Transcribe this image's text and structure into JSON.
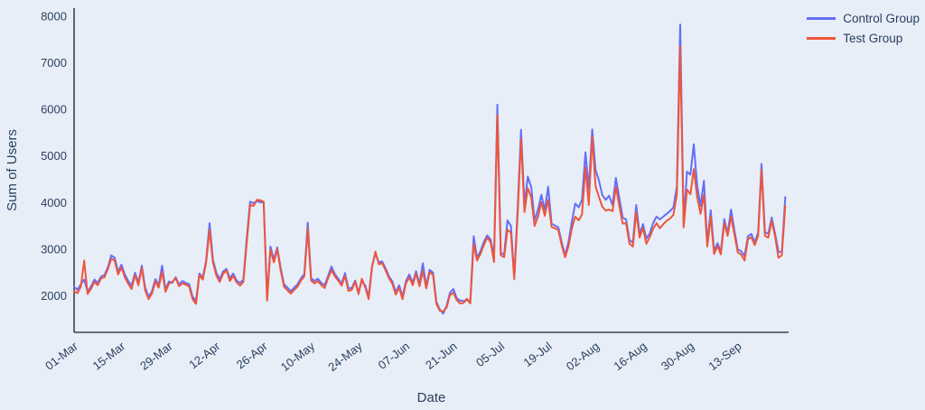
{
  "page": {
    "background": "#e8eef7"
  },
  "legend": {
    "items": [
      {
        "label": "Control Group"
      },
      {
        "label": "Test Group"
      }
    ]
  },
  "chart_data": {
    "type": "line",
    "title": "",
    "xlabel": "Date",
    "ylabel": "Sum of Users",
    "grid": false,
    "legend_position": "top-right-outside",
    "x_unit": "day index from 01-Mar, daily data",
    "xlim_days": [
      0,
      211
    ],
    "ylim": [
      1220,
      8170
    ],
    "y_ticks": [
      2000,
      3000,
      4000,
      5000,
      6000,
      7000,
      8000
    ],
    "x_tick_days": [
      0,
      14,
      28,
      42,
      56,
      70,
      84,
      98,
      112,
      126,
      140,
      154,
      168,
      182,
      196
    ],
    "x_tick_labels": [
      "01-Mar",
      "15-Mar",
      "29-Mar",
      "12-Apr",
      "26-Apr",
      "10-May",
      "24-May",
      "07-Jun",
      "21-Jun",
      "05-Jul",
      "19-Jul",
      "02-Aug",
      "16-Aug",
      "30-Aug",
      "13-Sep"
    ],
    "colors": {
      "control": "#636EFA",
      "test": "#EF553B",
      "text": "#2a3f5f",
      "axis_line": "#3b4149",
      "background": "#e8eef7"
    },
    "series": [
      {
        "name": "Control Group",
        "color_key": "control",
        "values": [
          2200,
          2130,
          2250,
          2350,
          2090,
          2200,
          2350,
          2280,
          2420,
          2450,
          2620,
          2870,
          2820,
          2520,
          2670,
          2460,
          2320,
          2220,
          2500,
          2280,
          2650,
          2180,
          1980,
          2100,
          2360,
          2230,
          2650,
          2140,
          2310,
          2280,
          2400,
          2250,
          2320,
          2280,
          2250,
          1980,
          1900,
          2480,
          2400,
          2760,
          3560,
          2780,
          2500,
          2360,
          2520,
          2580,
          2380,
          2480,
          2330,
          2280,
          2350,
          3250,
          4020,
          3990,
          4030,
          4010,
          4000,
          1960,
          3060,
          2780,
          3040,
          2600,
          2250,
          2180,
          2100,
          2180,
          2250,
          2380,
          2470,
          3570,
          2380,
          2320,
          2370,
          2280,
          2230,
          2430,
          2630,
          2470,
          2370,
          2270,
          2490,
          2160,
          2170,
          2330,
          2080,
          2330,
          2220,
          1980,
          2650,
          2900,
          2720,
          2740,
          2590,
          2420,
          2310,
          2080,
          2230,
          1980,
          2320,
          2460,
          2280,
          2530,
          2260,
          2700,
          2210,
          2560,
          2500,
          1870,
          1710,
          1620,
          1790,
          2070,
          2150,
          1950,
          1900,
          1890,
          1910,
          1880,
          3280,
          2820,
          2960,
          3160,
          3300,
          3210,
          2850,
          6100,
          2920,
          2890,
          3620,
          3500,
          2420,
          3900,
          5560,
          3950,
          4560,
          4330,
          3620,
          3850,
          4170,
          3840,
          4340,
          3550,
          3510,
          3470,
          3150,
          2870,
          3150,
          3600,
          3980,
          3900,
          4060,
          5080,
          4300,
          5570,
          4700,
          4470,
          4160,
          4060,
          4150,
          3950,
          4530,
          4100,
          3680,
          3640,
          3200,
          3140,
          3950,
          3320,
          3540,
          3230,
          3340,
          3560,
          3700,
          3640,
          3700,
          3760,
          3820,
          3900,
          4350,
          7820,
          3560,
          4660,
          4600,
          5250,
          4360,
          3930,
          4470,
          3130,
          3840,
          2970,
          3130,
          2950,
          3650,
          3340,
          3850,
          3410,
          2990,
          2960,
          2860,
          3280,
          3330,
          3150,
          3360,
          4830,
          3370,
          3330,
          3680,
          3340,
          2950,
          2940,
          4120
        ]
      },
      {
        "name": "Test Group",
        "color_key": "test",
        "values": [
          2100,
          2060,
          2200,
          2760,
          2040,
          2150,
          2300,
          2230,
          2380,
          2400,
          2580,
          2800,
          2760,
          2460,
          2610,
          2400,
          2260,
          2150,
          2450,
          2230,
          2600,
          2120,
          1930,
          2050,
          2310,
          2180,
          2520,
          2090,
          2260,
          2300,
          2380,
          2210,
          2270,
          2240,
          2200,
          1930,
          1830,
          2440,
          2350,
          2720,
          3420,
          2720,
          2440,
          2300,
          2470,
          2550,
          2320,
          2430,
          2290,
          2220,
          2300,
          3150,
          3950,
          3930,
          4060,
          4050,
          4020,
          1900,
          2990,
          2720,
          3000,
          2550,
          2200,
          2120,
          2050,
          2130,
          2200,
          2330,
          2420,
          3440,
          2330,
          2270,
          2320,
          2230,
          2170,
          2380,
          2560,
          2420,
          2330,
          2220,
          2430,
          2110,
          2130,
          2310,
          2040,
          2370,
          2180,
          1930,
          2620,
          2950,
          2680,
          2700,
          2550,
          2380,
          2260,
          2030,
          2180,
          1930,
          2270,
          2400,
          2230,
          2480,
          2210,
          2540,
          2160,
          2510,
          2450,
          1830,
          1680,
          1670,
          1750,
          2020,
          2070,
          1910,
          1840,
          1850,
          1940,
          1840,
          3120,
          2760,
          2900,
          3090,
          3250,
          3150,
          2730,
          5870,
          2870,
          2830,
          3420,
          3360,
          2360,
          3760,
          5360,
          3800,
          4310,
          4110,
          3500,
          3700,
          4010,
          3720,
          4060,
          3480,
          3450,
          3410,
          3090,
          2830,
          3060,
          3450,
          3700,
          3620,
          3750,
          4760,
          3950,
          5410,
          4350,
          4120,
          3910,
          3830,
          3850,
          3820,
          4340,
          3930,
          3550,
          3560,
          3120,
          3060,
          3800,
          3250,
          3460,
          3120,
          3260,
          3440,
          3560,
          3450,
          3540,
          3610,
          3660,
          3740,
          4170,
          7350,
          3470,
          4280,
          4180,
          4720,
          4120,
          3760,
          4170,
          3060,
          3700,
          2900,
          3070,
          2890,
          3560,
          3290,
          3700,
          3320,
          2930,
          2890,
          2760,
          3220,
          3260,
          3090,
          3290,
          4700,
          3290,
          3250,
          3610,
          3280,
          2820,
          2870,
          3930
        ]
      }
    ]
  }
}
